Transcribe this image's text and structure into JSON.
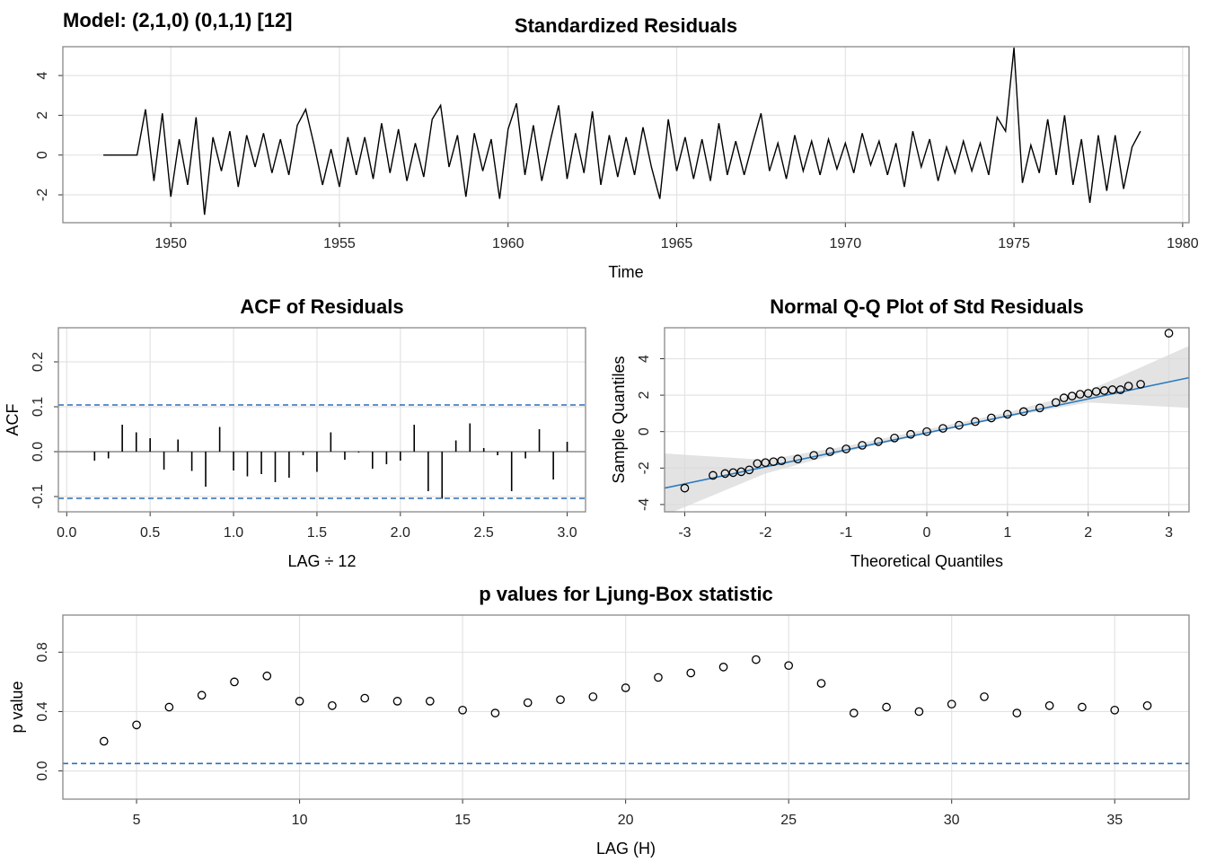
{
  "suptitle": "Model: (2,1,0) (0,1,1) [12]",
  "chart_data": [
    {
      "type": "line",
      "title": "Standardized Residuals",
      "xlabel": "Time",
      "color": "#000000",
      "x": [
        1948,
        1948.25,
        1948.5,
        1948.75,
        1949,
        1949.25,
        1949.5,
        1949.75,
        1950,
        1950.25,
        1950.5,
        1950.75,
        1951,
        1951.25,
        1951.5,
        1951.75,
        1952,
        1952.25,
        1952.5,
        1952.75,
        1953,
        1953.25,
        1953.5,
        1953.75,
        1954,
        1954.25,
        1954.5,
        1954.75,
        1955,
        1955.25,
        1955.5,
        1955.75,
        1956,
        1956.25,
        1956.5,
        1956.75,
        1957,
        1957.25,
        1957.5,
        1957.75,
        1958,
        1958.25,
        1958.5,
        1958.75,
        1959,
        1959.25,
        1959.5,
        1959.75,
        1960,
        1960.25,
        1960.5,
        1960.75,
        1961,
        1961.25,
        1961.5,
        1961.75,
        1962,
        1962.25,
        1962.5,
        1962.75,
        1963,
        1963.25,
        1963.5,
        1963.75,
        1964,
        1964.25,
        1964.5,
        1964.75,
        1965,
        1965.25,
        1965.5,
        1965.75,
        1966,
        1966.25,
        1966.5,
        1966.75,
        1967,
        1967.25,
        1967.5,
        1967.75,
        1968,
        1968.25,
        1968.5,
        1968.75,
        1969,
        1969.25,
        1969.5,
        1969.75,
        1970,
        1970.25,
        1970.5,
        1970.75,
        1971,
        1971.25,
        1971.5,
        1971.75,
        1972,
        1972.25,
        1972.5,
        1972.75,
        1973,
        1973.25,
        1973.5,
        1973.75,
        1974,
        1974.25,
        1974.5,
        1974.75,
        1975,
        1975.25,
        1975.5,
        1975.75,
        1976,
        1976.25,
        1976.5,
        1976.75,
        1977,
        1977.25,
        1977.5,
        1977.75,
        1978,
        1978.25,
        1978.5,
        1978.75
      ],
      "values": [
        0,
        0,
        0,
        0,
        0,
        2.3,
        -1.3,
        2.1,
        -2.1,
        0.8,
        -1.5,
        1.9,
        -3.0,
        0.9,
        -0.8,
        1.2,
        -1.6,
        1.0,
        -0.6,
        1.1,
        -0.9,
        0.8,
        -1.0,
        1.5,
        2.3,
        0.5,
        -1.5,
        0.3,
        -1.6,
        0.9,
        -1.0,
        0.9,
        -1.2,
        1.6,
        -0.9,
        1.3,
        -1.3,
        0.6,
        -1.1,
        1.8,
        2.5,
        -0.6,
        1.0,
        -2.1,
        1.1,
        -0.8,
        0.8,
        -2.2,
        1.3,
        2.6,
        -1.0,
        1.5,
        -1.3,
        0.7,
        2.5,
        -1.2,
        1.1,
        -0.9,
        2.2,
        -1.5,
        1.0,
        -1.1,
        0.9,
        -1.0,
        1.4,
        -0.6,
        -2.2,
        1.8,
        -0.8,
        0.9,
        -1.2,
        0.8,
        -1.3,
        1.6,
        -1.0,
        0.7,
        -1.0,
        0.6,
        2.1,
        -0.8,
        0.6,
        -1.2,
        1.0,
        -0.8,
        0.7,
        -1.0,
        0.8,
        -0.7,
        0.6,
        -0.9,
        1.1,
        -0.5,
        0.7,
        -1.0,
        0.6,
        -1.6,
        1.2,
        -0.6,
        0.8,
        -1.3,
        0.4,
        -0.9,
        0.7,
        -0.8,
        0.6,
        -1.0,
        1.9,
        1.2,
        5.4,
        -1.4,
        0.5,
        -0.9,
        1.8,
        -1.0,
        2.0,
        -1.5,
        0.8,
        -2.4,
        1.0,
        -1.8,
        1.0,
        -1.7,
        0.4,
        1.2
      ],
      "xlim": [
        1946.8,
        1980.19
      ],
      "ylim": [
        -3.4,
        5.45
      ],
      "xticks": [
        1950,
        1955,
        1960,
        1965,
        1970,
        1975,
        1980
      ],
      "yticks": [
        -2,
        0,
        2,
        4
      ],
      "grid": true
    },
    {
      "type": "stem",
      "title": "ACF of Residuals",
      "xlabel": "LAG ÷ 12",
      "ylabel": "ACF",
      "color": "#000000",
      "x": [
        0.167,
        0.25,
        0.333,
        0.417,
        0.5,
        0.583,
        0.667,
        0.75,
        0.833,
        0.917,
        1.0,
        1.083,
        1.167,
        1.25,
        1.333,
        1.417,
        1.5,
        1.583,
        1.667,
        1.75,
        1.833,
        1.917,
        2.0,
        2.083,
        2.167,
        2.25,
        2.333,
        2.417,
        2.5,
        2.583,
        2.667,
        2.75,
        2.833,
        2.917,
        3.0
      ],
      "values": [
        -0.02,
        -0.015,
        0.06,
        0.043,
        0.03,
        -0.04,
        0.027,
        -0.043,
        -0.078,
        0.055,
        -0.042,
        -0.055,
        -0.05,
        -0.068,
        -0.058,
        -0.008,
        -0.045,
        0.043,
        -0.018,
        -0.002,
        -0.038,
        -0.028,
        -0.02,
        0.06,
        -0.088,
        -0.105,
        0.025,
        0.063,
        0.008,
        -0.008,
        -0.088,
        -0.015,
        0.05,
        -0.062,
        0.022
      ],
      "hlines": [
        0.104,
        -0.104
      ],
      "hline_color": "#2c6fbb",
      "xlim": [
        -0.05,
        3.11
      ],
      "ylim": [
        -0.134,
        0.276
      ],
      "xticks": [
        {
          "value": 0,
          "label": "0.0"
        },
        0.5,
        {
          "value": 1,
          "label": "1.0"
        },
        1.5,
        {
          "value": 2,
          "label": "2.0"
        },
        2.5,
        {
          "value": 3,
          "label": "3.0"
        }
      ],
      "yticks": [
        -0.1,
        {
          "value": 0,
          "label": "0.0"
        },
        0.1,
        0.2
      ],
      "grid": true
    },
    {
      "type": "scatter",
      "title": "Normal Q-Q Plot of Std Residuals",
      "xlabel": "Theoretical Quantiles",
      "ylabel": "Sample Quantiles",
      "color": "#000000",
      "x": [
        -3.0,
        -2.65,
        -2.5,
        -2.4,
        -2.3,
        -2.2,
        -2.1,
        -2.0,
        -1.9,
        -1.8,
        -1.6,
        -1.4,
        -1.2,
        -1.0,
        -0.8,
        -0.6,
        -0.4,
        -0.2,
        0,
        0.2,
        0.4,
        0.6,
        0.8,
        1.0,
        1.2,
        1.4,
        1.6,
        1.7,
        1.8,
        1.9,
        2.0,
        2.1,
        2.2,
        2.3,
        2.4,
        2.5,
        2.65,
        3.0
      ],
      "values": [
        -3.1,
        -2.4,
        -2.3,
        -2.25,
        -2.2,
        -2.1,
        -1.75,
        -1.7,
        -1.65,
        -1.6,
        -1.5,
        -1.3,
        -1.1,
        -0.95,
        -0.75,
        -0.55,
        -0.35,
        -0.15,
        0.0,
        0.18,
        0.35,
        0.55,
        0.75,
        0.95,
        1.1,
        1.3,
        1.6,
        1.85,
        1.95,
        2.05,
        2.1,
        2.2,
        2.25,
        2.3,
        2.3,
        2.5,
        2.6,
        5.4
      ],
      "reference_line": {
        "x": [
          -3.25,
          3.25
        ],
        "values": [
          -3.1,
          2.96
        ],
        "color": "#2a7abf"
      },
      "band": {
        "x": [
          -3.25,
          -2,
          -1,
          0,
          1,
          2,
          3.25
        ],
        "lower": [
          -4.6,
          -2.3,
          -1.1,
          -0.12,
          0.8,
          1.6,
          1.3
        ],
        "upper": [
          -1.2,
          -1.55,
          -0.8,
          0.12,
          1.05,
          2.25,
          4.7
        ],
        "color": "#d9d9d9"
      },
      "xlim": [
        -3.25,
        3.25
      ],
      "ylim": [
        -4.4,
        5.7
      ],
      "xticks": [
        -3,
        -2,
        -1,
        0,
        1,
        2,
        3
      ],
      "yticks": [
        -4,
        -2,
        0,
        2,
        4
      ],
      "grid": true
    },
    {
      "type": "scatter",
      "title": "p values for Ljung-Box statistic",
      "xlabel": "LAG (H)",
      "ylabel": "p value",
      "color": "#000000",
      "x": [
        4,
        5,
        6,
        7,
        8,
        9,
        10,
        11,
        12,
        13,
        14,
        15,
        16,
        17,
        18,
        19,
        20,
        21,
        22,
        23,
        24,
        25,
        26,
        27,
        28,
        29,
        30,
        31,
        32,
        33,
        34,
        35,
        36
      ],
      "values": [
        0.2,
        0.31,
        0.43,
        0.51,
        0.6,
        0.64,
        0.47,
        0.44,
        0.49,
        0.47,
        0.47,
        0.41,
        0.39,
        0.46,
        0.48,
        0.5,
        0.56,
        0.63,
        0.66,
        0.7,
        0.75,
        0.71,
        0.59,
        0.39,
        0.43,
        0.4,
        0.45,
        0.5,
        0.39,
        0.44,
        0.43,
        0.41,
        0.44
      ],
      "hlines": [
        0.05
      ],
      "hline_color": "#2c6fbb",
      "xlim": [
        2.74,
        37.28
      ],
      "ylim": [
        -0.19,
        1.05
      ],
      "xticks": [
        5,
        10,
        15,
        20,
        25,
        30,
        35
      ],
      "yticks": [
        {
          "value": 0,
          "label": "0.0"
        },
        0.4,
        0.8
      ],
      "grid": true
    }
  ]
}
